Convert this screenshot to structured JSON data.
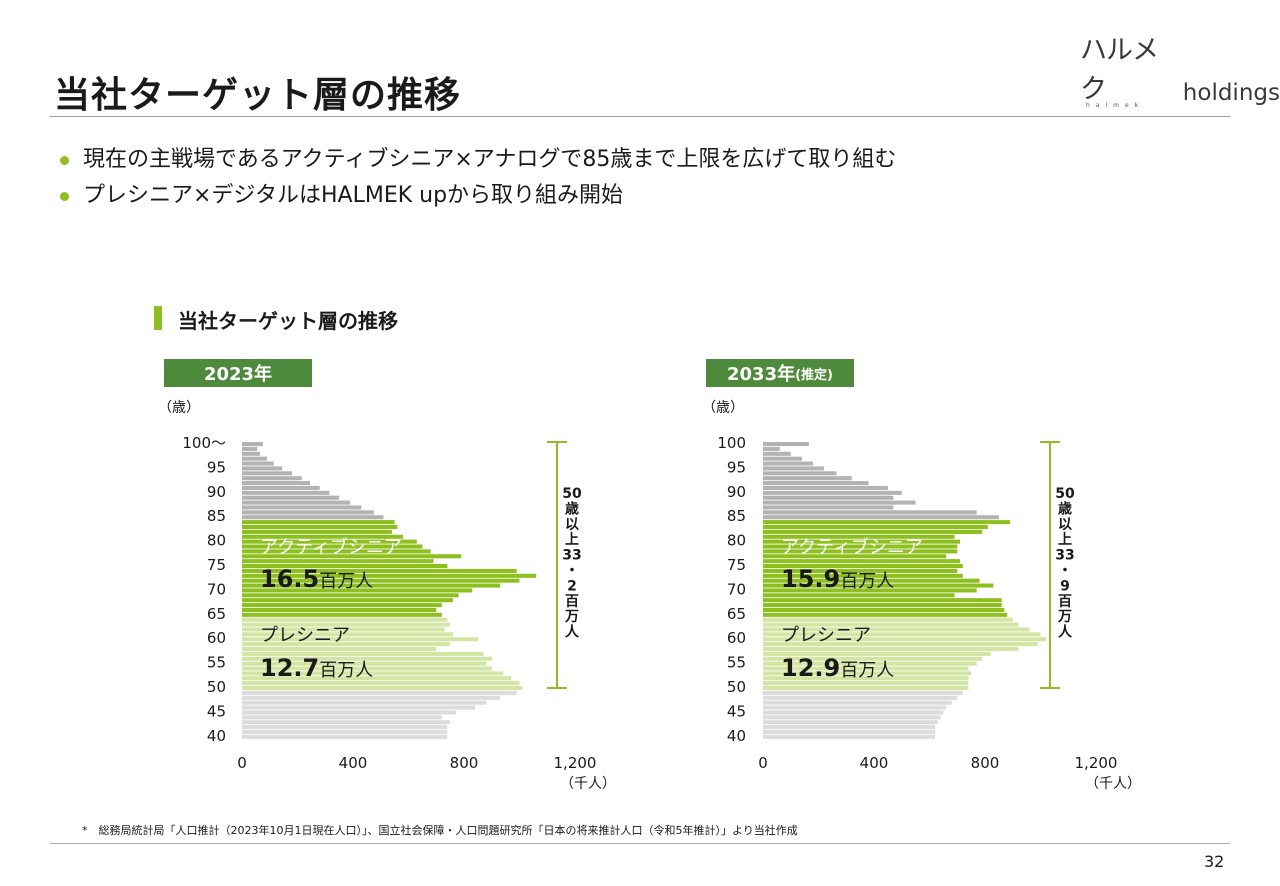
{
  "page": {
    "title": "当社ターゲット層の推移",
    "logo_text": "ハルメク",
    "logo_suffix": "holdings",
    "logo_sub": "halmek",
    "bullets": [
      "現在の主戦場であるアクティブシニア×アナログで85歳まで上限を広げて取り組む",
      "プレシニア×デジタルはHALMEK upから取り組み開始"
    ],
    "section_title": "当社ターゲット層の推移",
    "footnote": "*　総務局統計局「人口推計（2023年10月1日現在人口）」、国立社会保障・人口問題研究所「日本の将来推計人口（令和5年推計）」より当社作成",
    "page_number": "32"
  },
  "colors": {
    "accent": "#8dbf1f",
    "header_green": "#4e8a3c",
    "active_senior": "#8dbf1f",
    "pre_senior": "#d3e4a3",
    "elderly_gray": "#b3b3b3",
    "young_gray": "#dcdcdc",
    "bracket": "#8dbf1f"
  },
  "chart_data": [
    {
      "type": "bar",
      "orientation": "horizontal",
      "year_label": "2023年",
      "year_suffix": "",
      "age_unit": "（歳）",
      "x_unit": "（千人）",
      "xlim": [
        0,
        1200
      ],
      "xticks": [
        "0",
        "400",
        "800",
        "1,200"
      ],
      "xtick_values": [
        0,
        400,
        800,
        1200
      ],
      "ytick_labels": [
        "100～",
        "95",
        "90",
        "85",
        "80",
        "75",
        "70",
        "65",
        "60",
        "55",
        "50",
        "45",
        "40"
      ],
      "ytick_ages": [
        100,
        95,
        90,
        85,
        80,
        75,
        70,
        65,
        60,
        55,
        50,
        45,
        40
      ],
      "ages": [
        100,
        99,
        98,
        97,
        96,
        95,
        94,
        93,
        92,
        91,
        90,
        89,
        88,
        87,
        86,
        85,
        84,
        83,
        82,
        81,
        80,
        79,
        78,
        77,
        76,
        75,
        74,
        73,
        72,
        71,
        70,
        69,
        68,
        67,
        66,
        65,
        64,
        63,
        62,
        61,
        60,
        59,
        58,
        57,
        56,
        55,
        54,
        53,
        52,
        51,
        50,
        49,
        48,
        47,
        46,
        45,
        44,
        43,
        42,
        41,
        40
      ],
      "values": [
        75,
        55,
        65,
        90,
        115,
        145,
        180,
        215,
        245,
        280,
        315,
        350,
        390,
        430,
        475,
        510,
        550,
        560,
        540,
        580,
        630,
        650,
        680,
        790,
        690,
        740,
        990,
        1060,
        1000,
        930,
        830,
        780,
        760,
        720,
        700,
        720,
        740,
        750,
        730,
        760,
        850,
        750,
        700,
        870,
        900,
        880,
        900,
        940,
        970,
        1000,
        1010,
        990,
        930,
        880,
        840,
        770,
        720,
        750,
        740,
        740,
        740
      ],
      "groups": [
        {
          "name": "アクティブシニア",
          "total": "16.5",
          "unit": "百万人",
          "from": 65,
          "to": 84
        },
        {
          "name": "プレシニア",
          "total": "12.7",
          "unit": "百万人",
          "from": 50,
          "to": 64
        }
      ],
      "bracket_label": [
        "50",
        "歳",
        "以",
        "上",
        "33",
        "・",
        "2",
        "百",
        "万",
        "人"
      ]
    },
    {
      "type": "bar",
      "orientation": "horizontal",
      "year_label": "2033年",
      "year_suffix": "(推定)",
      "age_unit": "（歳）",
      "x_unit": "（千人）",
      "xlim": [
        0,
        1200
      ],
      "xticks": [
        "0",
        "400",
        "800",
        "1,200"
      ],
      "xtick_values": [
        0,
        400,
        800,
        1200
      ],
      "ytick_labels": [
        "100",
        "95",
        "90",
        "85",
        "80",
        "75",
        "70",
        "65",
        "60",
        "55",
        "50",
        "45",
        "40"
      ],
      "ytick_ages": [
        100,
        95,
        90,
        85,
        80,
        75,
        70,
        65,
        60,
        55,
        50,
        45,
        40
      ],
      "ages": [
        100,
        99,
        98,
        97,
        96,
        95,
        94,
        93,
        92,
        91,
        90,
        89,
        88,
        87,
        86,
        85,
        84,
        83,
        82,
        81,
        80,
        79,
        78,
        77,
        76,
        75,
        74,
        73,
        72,
        71,
        70,
        69,
        68,
        67,
        66,
        65,
        64,
        63,
        62,
        61,
        60,
        59,
        58,
        57,
        56,
        55,
        54,
        53,
        52,
        51,
        50,
        49,
        48,
        47,
        46,
        45,
        44,
        43,
        42,
        41,
        40
      ],
      "values": [
        165,
        60,
        100,
        140,
        180,
        220,
        265,
        320,
        380,
        450,
        500,
        470,
        550,
        470,
        770,
        850,
        890,
        810,
        790,
        690,
        710,
        700,
        700,
        660,
        710,
        720,
        700,
        720,
        780,
        830,
        770,
        690,
        860,
        860,
        870,
        880,
        900,
        920,
        960,
        1000,
        1020,
        990,
        920,
        820,
        790,
        770,
        740,
        750,
        740,
        740,
        740,
        720,
        700,
        680,
        660,
        650,
        640,
        630,
        620,
        620,
        620
      ],
      "groups": [
        {
          "name": "アクティブシニア",
          "total": "15.9",
          "unit": "百万人",
          "from": 65,
          "to": 84
        },
        {
          "name": "プレシニア",
          "total": "12.9",
          "unit": "百万人",
          "from": 50,
          "to": 64
        }
      ],
      "bracket_label": [
        "50",
        "歳",
        "以",
        "上",
        "33",
        "・",
        "9",
        "百",
        "万",
        "人"
      ]
    }
  ]
}
